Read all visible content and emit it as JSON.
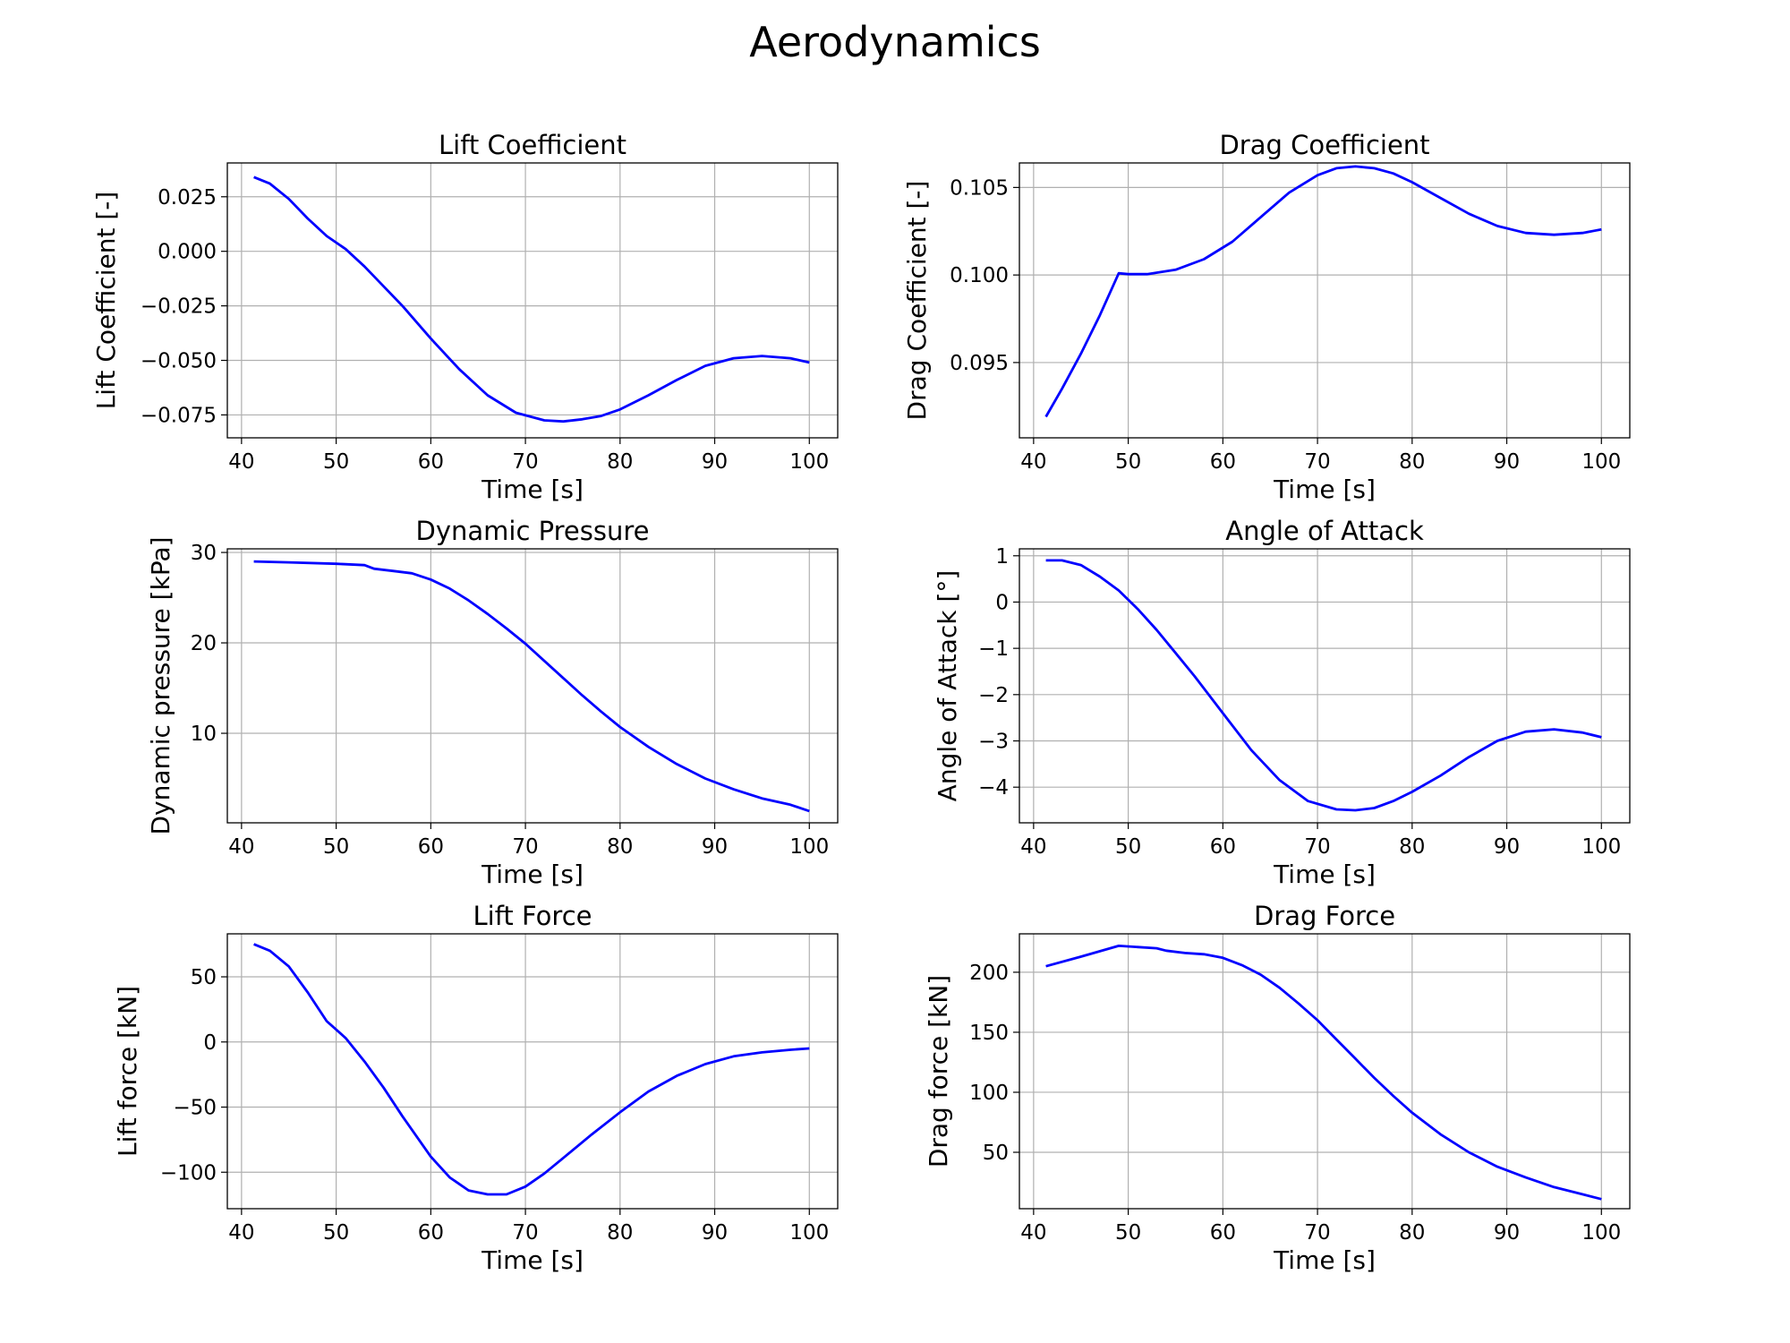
{
  "figure_title": "Aerodynamics",
  "line_color": "#0000ff",
  "grid_color": "#b0b0b0",
  "chart_data": [
    {
      "type": "line",
      "title": "Lift Coefficient",
      "xlabel": "Time [s]",
      "ylabel": "Lift Coefficient [-]",
      "xlim": [
        38.5,
        103
      ],
      "ylim": [
        -0.0855,
        0.0405
      ],
      "xticks": [
        40,
        50,
        60,
        70,
        80,
        90,
        100
      ],
      "xtick_labels": [
        "40",
        "50",
        "60",
        "70",
        "80",
        "90",
        "100"
      ],
      "yticks": [
        -0.075,
        -0.05,
        -0.025,
        0.0,
        0.025
      ],
      "ytick_labels": [
        "−0.075",
        "−0.050",
        "−0.025",
        "0.000",
        "0.025"
      ],
      "grid": true,
      "series": [
        {
          "x": [
            41.3,
            43,
            45,
            47,
            49,
            51,
            53,
            55,
            57,
            60,
            63,
            66,
            69,
            72,
            74,
            76,
            78,
            80,
            83,
            86,
            89,
            92,
            95,
            98,
            100
          ],
          "y": [
            0.034,
            0.031,
            0.024,
            0.015,
            0.007,
            0.001,
            -0.007,
            -0.016,
            -0.025,
            -0.04,
            -0.054,
            -0.066,
            -0.074,
            -0.0775,
            -0.078,
            -0.077,
            -0.0755,
            -0.0725,
            -0.066,
            -0.059,
            -0.0525,
            -0.049,
            -0.048,
            -0.049,
            -0.051
          ]
        }
      ]
    },
    {
      "type": "line",
      "title": "Drag Coefficient",
      "xlabel": "Time [s]",
      "ylabel": "Drag Coefficient [-]",
      "xlim": [
        38.5,
        103
      ],
      "ylim": [
        0.0907,
        0.1064
      ],
      "xticks": [
        40,
        50,
        60,
        70,
        80,
        90,
        100
      ],
      "xtick_labels": [
        "40",
        "50",
        "60",
        "70",
        "80",
        "90",
        "100"
      ],
      "yticks": [
        0.095,
        0.1,
        0.105
      ],
      "ytick_labels": [
        "0.095",
        "0.100",
        "0.105"
      ],
      "grid": true,
      "series": [
        {
          "x": [
            41.3,
            43,
            45,
            47,
            49,
            50,
            52,
            55,
            58,
            61,
            64,
            67,
            70,
            72,
            74,
            76,
            78,
            80,
            83,
            86,
            89,
            92,
            95,
            98,
            100
          ],
          "y": [
            0.0919,
            0.0935,
            0.0955,
            0.0977,
            0.1001,
            0.10005,
            0.10005,
            0.1003,
            0.1009,
            0.1019,
            0.1033,
            0.1047,
            0.1057,
            0.1061,
            0.1062,
            0.1061,
            0.1058,
            0.1053,
            0.1044,
            0.1035,
            0.1028,
            0.1024,
            0.1023,
            0.1024,
            0.1026
          ]
        }
      ]
    },
    {
      "type": "line",
      "title": "Dynamic Pressure",
      "xlabel": "Time [s]",
      "ylabel": "Dynamic pressure [kPa]",
      "xlim": [
        38.5,
        103
      ],
      "ylim": [
        0.1,
        30.4
      ],
      "xticks": [
        40,
        50,
        60,
        70,
        80,
        90,
        100
      ],
      "xtick_labels": [
        "40",
        "50",
        "60",
        "70",
        "80",
        "90",
        "100"
      ],
      "yticks": [
        10,
        20,
        30
      ],
      "ytick_labels": [
        "10",
        "20",
        "30"
      ],
      "grid": true,
      "series": [
        {
          "x": [
            41.3,
            45,
            50,
            53,
            54,
            56,
            58,
            60,
            62,
            64,
            66,
            68,
            70,
            72,
            74,
            76,
            78,
            80,
            83,
            86,
            89,
            92,
            95,
            98,
            100
          ],
          "y": [
            29.0,
            28.9,
            28.75,
            28.6,
            28.2,
            27.95,
            27.7,
            27.0,
            26.0,
            24.7,
            23.2,
            21.6,
            19.9,
            18.0,
            16.1,
            14.2,
            12.4,
            10.7,
            8.5,
            6.6,
            5.0,
            3.8,
            2.8,
            2.1,
            1.4
          ]
        }
      ]
    },
    {
      "type": "line",
      "title": "Angle of Attack",
      "xlabel": "Time [s]",
      "ylabel": "Angle of Attack [°]",
      "xlim": [
        38.5,
        103
      ],
      "ylim": [
        -4.77,
        1.15
      ],
      "xticks": [
        40,
        50,
        60,
        70,
        80,
        90,
        100
      ],
      "xtick_labels": [
        "40",
        "50",
        "60",
        "70",
        "80",
        "90",
        "100"
      ],
      "yticks": [
        -4,
        -3,
        -2,
        -1,
        0,
        1
      ],
      "ytick_labels": [
        "−4",
        "−3",
        "−2",
        "−1",
        "0",
        "1"
      ],
      "grid": true,
      "series": [
        {
          "x": [
            41.3,
            43,
            45,
            47,
            49,
            51,
            53,
            55,
            57,
            60,
            63,
            66,
            69,
            72,
            74,
            76,
            78,
            80,
            83,
            86,
            89,
            92,
            95,
            98,
            100
          ],
          "y": [
            0.9,
            0.9,
            0.8,
            0.55,
            0.25,
            -0.15,
            -0.6,
            -1.1,
            -1.6,
            -2.4,
            -3.2,
            -3.85,
            -4.3,
            -4.48,
            -4.5,
            -4.45,
            -4.3,
            -4.1,
            -3.75,
            -3.35,
            -3.0,
            -2.8,
            -2.75,
            -2.82,
            -2.92
          ]
        }
      ]
    },
    {
      "type": "line",
      "title": "Lift Force",
      "xlabel": "Time [s]",
      "ylabel": "Lift force [kN]",
      "xlim": [
        38.5,
        103
      ],
      "ylim": [
        -128,
        83
      ],
      "xticks": [
        40,
        50,
        60,
        70,
        80,
        90,
        100
      ],
      "xtick_labels": [
        "40",
        "50",
        "60",
        "70",
        "80",
        "90",
        "100"
      ],
      "yticks": [
        -100,
        -50,
        0,
        50
      ],
      "ytick_labels": [
        "−100",
        "−50",
        "0",
        "50"
      ],
      "grid": true,
      "series": [
        {
          "x": [
            41.3,
            43,
            45,
            47,
            49,
            51,
            53,
            55,
            57,
            60,
            62,
            64,
            66,
            68,
            70,
            72,
            74,
            77,
            80,
            83,
            86,
            89,
            92,
            95,
            98,
            100
          ],
          "y": [
            75,
            70,
            58,
            38,
            16,
            3,
            -15,
            -35,
            -57,
            -88,
            -104,
            -114,
            -117,
            -117,
            -111,
            -101,
            -89,
            -71,
            -54,
            -38,
            -26,
            -17,
            -11,
            -8,
            -6,
            -5
          ]
        }
      ]
    },
    {
      "type": "line",
      "title": "Drag Force",
      "xlabel": "Time [s]",
      "ylabel": "Drag force [kN]",
      "xlim": [
        38.5,
        103
      ],
      "ylim": [
        3,
        232
      ],
      "xticks": [
        40,
        50,
        60,
        70,
        80,
        90,
        100
      ],
      "xtick_labels": [
        "40",
        "50",
        "60",
        "70",
        "80",
        "90",
        "100"
      ],
      "yticks": [
        50,
        100,
        150,
        200
      ],
      "ytick_labels": [
        "50",
        "100",
        "150",
        "200"
      ],
      "grid": true,
      "series": [
        {
          "x": [
            41.3,
            45,
            49,
            53,
            54,
            56,
            58,
            60,
            62,
            64,
            66,
            68,
            70,
            72,
            74,
            76,
            78,
            80,
            83,
            86,
            89,
            92,
            95,
            98,
            100
          ],
          "y": [
            205,
            213,
            222,
            220,
            218,
            216,
            215,
            212,
            206,
            198,
            187,
            174,
            160,
            144,
            128,
            112,
            97,
            83,
            65,
            50,
            38,
            29,
            21,
            15,
            11
          ]
        }
      ]
    }
  ]
}
